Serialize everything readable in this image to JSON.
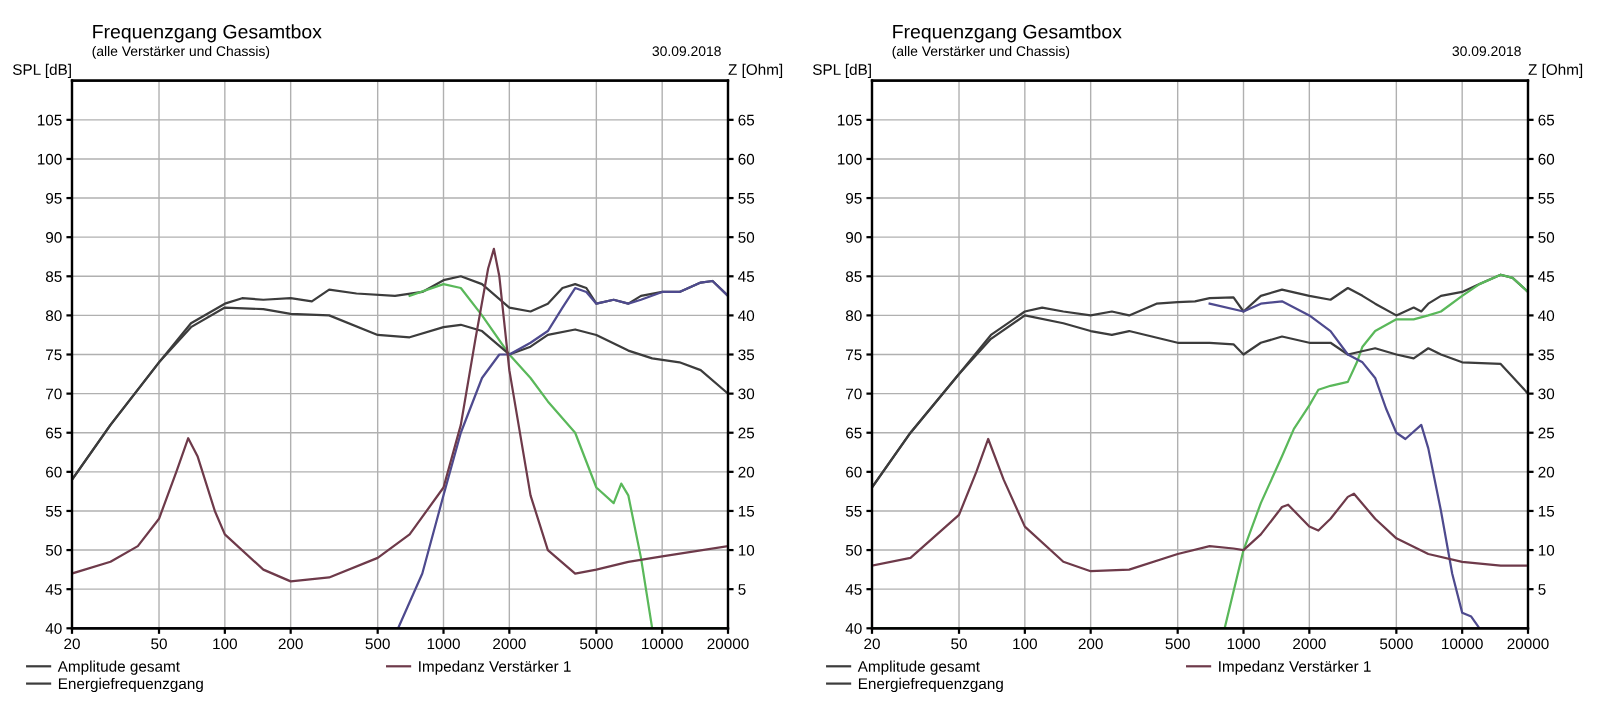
{
  "chart_data": [
    {
      "type": "line",
      "title": "Frequenzgang Gesamtbox",
      "subtitle": "(alle Verstärker und Chassis)",
      "annotations": [
        "30.09.2018"
      ],
      "xlabel": null,
      "ylabel": "SPL [dB]",
      "y2label": "Z [Ohm]",
      "log": "x",
      "grid": true,
      "legend": "bottom",
      "xlim": [
        20,
        20000
      ],
      "xticks": [
        20,
        50,
        100,
        200,
        500,
        1000,
        2000,
        5000,
        10000,
        20000
      ],
      "ylim": [
        40,
        110
      ],
      "yticks": [
        40,
        45,
        50,
        55,
        60,
        65,
        70,
        75,
        80,
        85,
        90,
        95,
        100,
        105
      ],
      "y2lim": [
        0,
        70
      ],
      "y2ticks": [
        5,
        10,
        15,
        20,
        25,
        30,
        35,
        40,
        45,
        50,
        55,
        60,
        65
      ],
      "series": [
        {
          "name": "Amplitude gesamt",
          "color": "#3c3c3c",
          "x": [
            20,
            30,
            50,
            70,
            100,
            120,
            150,
            200,
            250,
            300,
            400,
            600,
            800,
            1000,
            1200,
            1500,
            2000,
            2500,
            3000,
            3500,
            4000,
            4500,
            5000,
            6000,
            7000,
            8000,
            10000,
            12000,
            15000,
            17000,
            20000
          ],
          "values": [
            59,
            66,
            74,
            79,
            81.5,
            82.2,
            82,
            82.2,
            81.8,
            83.3,
            82.8,
            82.5,
            83,
            84.5,
            85,
            84,
            81,
            80.5,
            81.5,
            83.5,
            84,
            83.5,
            81.5,
            82,
            81.5,
            82.5,
            83,
            83,
            84.2,
            84.4,
            82.5
          ]
        },
        {
          "color": "#5ab85a",
          "x": [
            700,
            1000,
            1200,
            1500,
            2000,
            2500,
            3000,
            4000,
            5000,
            6000,
            6500,
            7000,
            8000,
            9000,
            20000
          ],
          "values": [
            82.5,
            84,
            83.5,
            80,
            75,
            72,
            69,
            65,
            58,
            56,
            58.5,
            57,
            49,
            40,
            40
          ]
        },
        {
          "name": "Energiefrequenzgang",
          "color": "#3c3c3c",
          "x": [
            20,
            30,
            50,
            70,
            100,
            150,
            200,
            300,
            500,
            700,
            1000,
            1200,
            1500,
            2000,
            2500,
            3000,
            4000,
            5000,
            7000,
            9000,
            12000,
            15000,
            20000
          ],
          "values": [
            59,
            66,
            74,
            78.5,
            81,
            80.8,
            80.2,
            80,
            77.5,
            77.2,
            78.5,
            78.8,
            78,
            75,
            76,
            77.5,
            78.2,
            77.5,
            75.5,
            74.5,
            74,
            73,
            70
          ]
        },
        {
          "color": "#4e4a8e",
          "x": [
            20,
            620,
            800,
            1000,
            1200,
            1500,
            1800,
            2000,
            2500,
            3000,
            3500,
            4000,
            4500,
            5000,
            6000,
            7000,
            8000,
            10000,
            12000,
            15000,
            17000,
            20000
          ],
          "values": [
            40,
            40,
            47,
            57,
            65,
            72,
            75,
            75,
            76.5,
            78,
            81,
            83.5,
            83,
            81.5,
            82,
            81.5,
            82,
            83,
            83,
            84.2,
            84.4,
            82.5
          ]
        },
        {
          "name": "Impedanz Verstärker 1",
          "color": "#6e3a4a",
          "axis": "y2",
          "x": [
            20,
            30,
            40,
            50,
            60,
            68,
            75,
            90,
            100,
            150,
            200,
            300,
            500,
            700,
            1000,
            1200,
            1400,
            1600,
            1700,
            1800,
            2000,
            2500,
            3000,
            4000,
            5000,
            7000,
            10000,
            20000
          ],
          "values": [
            7,
            8.5,
            10.5,
            14,
            20,
            24.3,
            22,
            15,
            12,
            7.5,
            6,
            6.5,
            9,
            12,
            18,
            26,
            37,
            46,
            48.5,
            45,
            33,
            17,
            10,
            7,
            7.5,
            8.5,
            9.2,
            10.5
          ]
        }
      ]
    },
    {
      "type": "line",
      "title": "Frequenzgang Gesamtbox",
      "subtitle": "(alle Verstärker und Chassis)",
      "annotations": [
        "30.09.2018"
      ],
      "xlabel": null,
      "ylabel": "SPL [dB]",
      "y2label": "Z [Ohm]",
      "log": "x",
      "grid": true,
      "legend": "bottom",
      "xlim": [
        20,
        20000
      ],
      "xticks": [
        20,
        50,
        100,
        200,
        500,
        1000,
        2000,
        5000,
        10000,
        20000
      ],
      "ylim": [
        40,
        110
      ],
      "yticks": [
        40,
        45,
        50,
        55,
        60,
        65,
        70,
        75,
        80,
        85,
        90,
        95,
        100,
        105
      ],
      "y2lim": [
        0,
        70
      ],
      "y2ticks": [
        5,
        10,
        15,
        20,
        25,
        30,
        35,
        40,
        45,
        50,
        55,
        60,
        65
      ],
      "series": [
        {
          "name": "Amplitude gesamt",
          "color": "#3c3c3c",
          "x": [
            20,
            30,
            50,
            70,
            100,
            120,
            150,
            200,
            250,
            300,
            400,
            500,
            600,
            700,
            900,
            1000,
            1200,
            1500,
            2000,
            2500,
            3000,
            3500,
            4000,
            5000,
            6000,
            6500,
            7000,
            8000,
            10000,
            12000,
            15000,
            17000,
            20000
          ],
          "values": [
            58,
            65,
            72.5,
            77.5,
            80.5,
            81,
            80.5,
            80,
            80.5,
            80,
            81.5,
            81.7,
            81.8,
            82.2,
            82.3,
            80.5,
            82.5,
            83.3,
            82.5,
            82,
            83.5,
            82.5,
            81.5,
            80,
            81,
            80.5,
            81.5,
            82.5,
            83,
            84,
            85.2,
            84.8,
            83
          ]
        },
        {
          "color": "#5ab85a",
          "x": [
            20,
            820,
            1000,
            1200,
            1500,
            1700,
            2000,
            2200,
            2500,
            3000,
            3300,
            3500,
            4000,
            5000,
            6000,
            7000,
            8000,
            10000,
            12000,
            15000,
            17000,
            20000
          ],
          "values": [
            40,
            40,
            50,
            56,
            62,
            65.5,
            68.5,
            70.5,
            71,
            71.5,
            74,
            76,
            78,
            79.5,
            79.5,
            80,
            80.5,
            82.5,
            84,
            85.2,
            84.8,
            83
          ]
        },
        {
          "name": "Energiefrequenzgang",
          "color": "#3c3c3c",
          "x": [
            20,
            30,
            50,
            70,
            100,
            150,
            200,
            250,
            300,
            500,
            700,
            900,
            1000,
            1200,
            1500,
            2000,
            2500,
            3000,
            4000,
            5000,
            6000,
            7000,
            8000,
            10000,
            15000,
            20000
          ],
          "values": [
            58,
            65,
            72.5,
            77,
            80,
            79,
            78,
            77.5,
            78,
            76.5,
            76.5,
            76.3,
            75,
            76.5,
            77.3,
            76.5,
            76.5,
            75,
            75.8,
            75,
            74.5,
            75.8,
            75,
            74,
            73.8,
            70
          ]
        },
        {
          "color": "#4e4a8e",
          "x": [
            700,
            1000,
            1200,
            1500,
            2000,
            2500,
            3000,
            3500,
            4000,
            4500,
            5000,
            5500,
            6500,
            7000,
            8000,
            9000,
            10000,
            11000,
            12000,
            20000
          ],
          "values": [
            81.5,
            80.5,
            81.5,
            81.8,
            80,
            78,
            75,
            74,
            72,
            68,
            65,
            64.2,
            66,
            63,
            55,
            47,
            42,
            41.5,
            40,
            40
          ]
        },
        {
          "name": "Impedanz Verstärker 1",
          "color": "#6e3a4a",
          "axis": "y2",
          "x": [
            20,
            30,
            50,
            60,
            68,
            80,
            100,
            150,
            200,
            300,
            500,
            700,
            900,
            1000,
            1200,
            1500,
            1600,
            2000,
            2200,
            2500,
            3000,
            3200,
            4000,
            5000,
            7000,
            10000,
            15000,
            20000
          ],
          "values": [
            8,
            9,
            14.5,
            20,
            24.2,
            19,
            13,
            8.5,
            7.3,
            7.5,
            9.5,
            10.5,
            10.2,
            10,
            12,
            15.5,
            15.8,
            13,
            12.5,
            14,
            16.8,
            17.2,
            14,
            11.5,
            9.5,
            8.5,
            8,
            8
          ]
        }
      ]
    }
  ]
}
